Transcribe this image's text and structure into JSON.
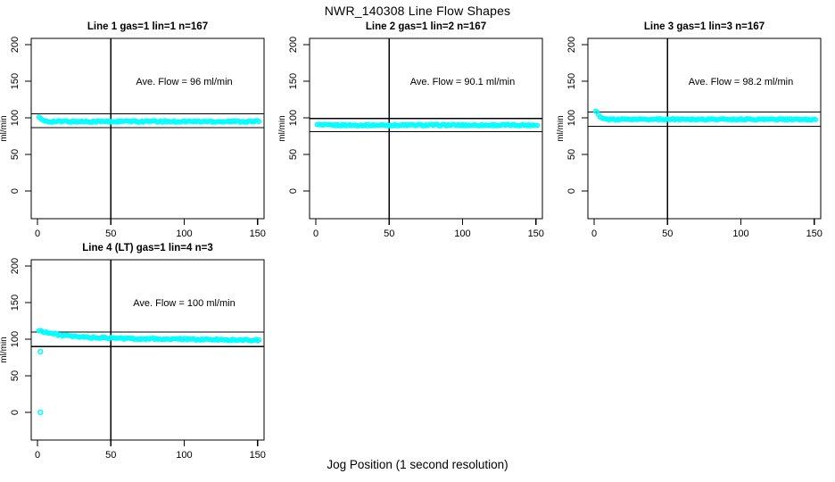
{
  "figure": {
    "title": "NWR_140308  Line Flow Shapes",
    "xlabel": "Jog Position (1 second resolution)",
    "background_color": "#FFFFFF",
    "axis_color": "#000000",
    "point_color": "#00FFFF"
  },
  "chart_data": [
    {
      "type": "scatter",
      "title": "Line 1 gas=1 lin=1 n=167",
      "annotation": "Ave. Flow =  96  ml/min",
      "ave_flow_ml_min": 96,
      "ylabel": "ml/min",
      "x_ticks": [
        0,
        50,
        100,
        150
      ],
      "y_ticks": [
        0,
        50,
        100,
        150,
        200
      ],
      "xlim": [
        0,
        155
      ],
      "ylim": [
        -20,
        215
      ],
      "vline_x": 50,
      "hlines": [
        105.6,
        86.4
      ],
      "series": {
        "name": "flow",
        "color": "#00FFFF",
        "x_end": 151,
        "noise": 1.1,
        "points": [
          [
            1,
            101.5
          ],
          [
            2,
            99
          ],
          [
            3,
            97
          ],
          [
            4,
            96
          ],
          [
            5,
            95.5
          ],
          [
            8,
            95
          ],
          [
            15,
            95
          ],
          [
            25,
            95
          ],
          [
            40,
            95
          ],
          [
            60,
            95
          ],
          [
            80,
            95
          ],
          [
            100,
            95
          ],
          [
            120,
            95
          ],
          [
            140,
            95
          ],
          [
            151,
            95
          ]
        ]
      },
      "outliers": []
    },
    {
      "type": "scatter",
      "title": "Line 2 gas=1 lin=2 n=167",
      "annotation": "Ave. Flow =  90.1  ml/min",
      "ave_flow_ml_min": 90.1,
      "ylabel": "ml/min",
      "x_ticks": [
        0,
        50,
        100,
        150
      ],
      "y_ticks": [
        0,
        50,
        100,
        150,
        200
      ],
      "xlim": [
        0,
        155
      ],
      "ylim": [
        -20,
        215
      ],
      "vline_x": 50,
      "hlines": [
        99.1,
        81.1
      ],
      "series": {
        "name": "flow",
        "color": "#00FFFF",
        "x_end": 151,
        "noise": 1.0,
        "points": [
          [
            1,
            91.5
          ],
          [
            2,
            90.5
          ],
          [
            4,
            90
          ],
          [
            10,
            90
          ],
          [
            25,
            90
          ],
          [
            50,
            90
          ],
          [
            75,
            90
          ],
          [
            100,
            90
          ],
          [
            125,
            90
          ],
          [
            151,
            90
          ]
        ]
      },
      "outliers": []
    },
    {
      "type": "scatter",
      "title": "Line 3 gas=1 lin=3 n=167",
      "annotation": "Ave. Flow =  98.2  ml/min",
      "ave_flow_ml_min": 98.2,
      "ylabel": "ml/min",
      "x_ticks": [
        0,
        50,
        100,
        150
      ],
      "y_ticks": [
        0,
        50,
        100,
        150,
        200
      ],
      "xlim": [
        0,
        155
      ],
      "ylim": [
        -20,
        215
      ],
      "vline_x": 50,
      "hlines": [
        108.0,
        88.4
      ],
      "series": {
        "name": "flow",
        "color": "#00FFFF",
        "x_end": 151,
        "noise": 0.9,
        "points": [
          [
            1,
            109
          ],
          [
            2,
            107.5
          ],
          [
            3,
            104
          ],
          [
            4,
            101
          ],
          [
            5,
            99.5
          ],
          [
            7,
            98.5
          ],
          [
            10,
            98
          ],
          [
            25,
            98
          ],
          [
            50,
            98
          ],
          [
            75,
            98
          ],
          [
            100,
            98
          ],
          [
            125,
            98
          ],
          [
            151,
            97.5
          ]
        ]
      },
      "outliers": []
    },
    {
      "type": "scatter",
      "title": "Line 4 (LT) gas=1 lin=4 n=3",
      "annotation": "Ave. Flow =  100  ml/min",
      "ave_flow_ml_min": 100,
      "ylabel": "ml/min",
      "x_ticks": [
        0,
        50,
        100,
        150
      ],
      "y_ticks": [
        0,
        50,
        100,
        150,
        200
      ],
      "xlim": [
        0,
        155
      ],
      "ylim": [
        -20,
        215
      ],
      "vline_x": 50,
      "hlines": [
        110.0,
        90.0
      ],
      "series": {
        "name": "flow",
        "color": "#00FFFF",
        "x_end": 151,
        "noise": 1.1,
        "points": [
          [
            1,
            112
          ],
          [
            3,
            111
          ],
          [
            5,
            110
          ],
          [
            8,
            108.5
          ],
          [
            12,
            107
          ],
          [
            16,
            105.5
          ],
          [
            20,
            104.5
          ],
          [
            25,
            103.5
          ],
          [
            30,
            103
          ],
          [
            35,
            102.5
          ],
          [
            40,
            102
          ],
          [
            50,
            101.5
          ],
          [
            60,
            101
          ],
          [
            70,
            100.5
          ],
          [
            80,
            100.5
          ],
          [
            90,
            100
          ],
          [
            100,
            100
          ],
          [
            110,
            99.5
          ],
          [
            120,
            99.5
          ],
          [
            130,
            99
          ],
          [
            140,
            99
          ],
          [
            151,
            98.5
          ]
        ]
      },
      "outliers": [
        [
          2,
          83
        ],
        [
          2,
          0
        ]
      ]
    }
  ]
}
